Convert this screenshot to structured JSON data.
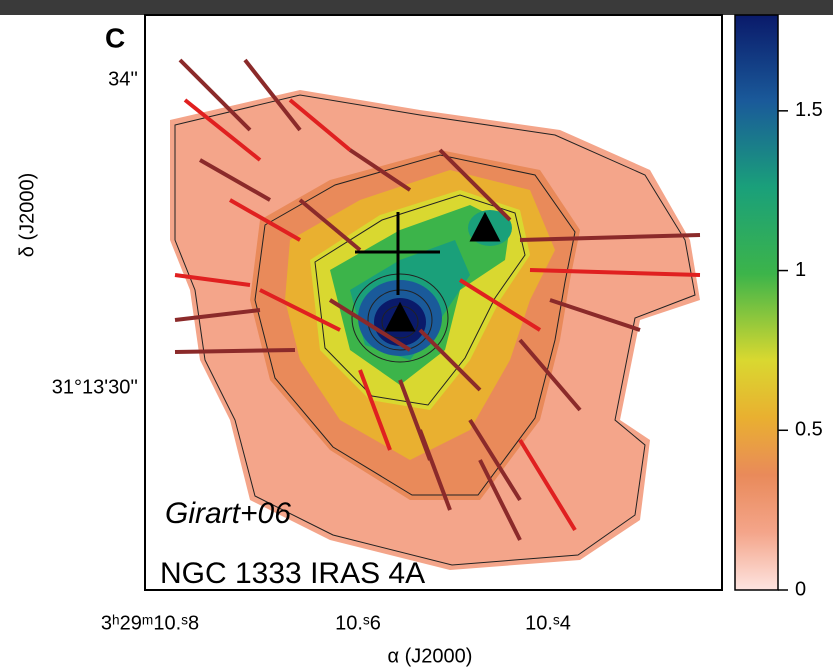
{
  "figure": {
    "panel_label": "C",
    "y_axis_label": "δ (J2000)",
    "x_axis_label": "α (J2000)",
    "y_tick_labels": [
      "34''",
      "31°13'30''"
    ],
    "x_tick_labels": [
      "3ʰ29ᵐ10.ˢ8",
      "10.ˢ6",
      "10.ˢ4"
    ],
    "annotations": [
      "Girart+06",
      "NGC 1333 IRAS 4A"
    ],
    "colorbar": {
      "lim": [
        0,
        1.8
      ],
      "ticks": [
        0,
        0.5,
        1,
        1.5
      ]
    }
  }
}
